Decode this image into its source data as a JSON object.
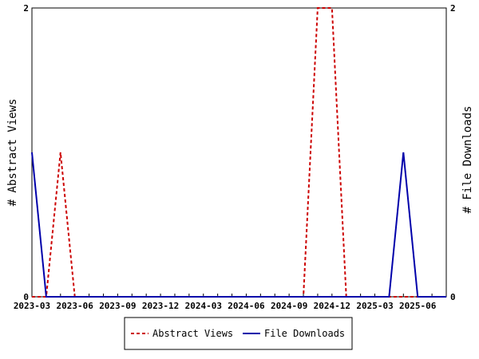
{
  "chart_data": {
    "type": "line",
    "x": [
      "2023-03",
      "2023-04",
      "2023-05",
      "2023-06",
      "2023-07",
      "2023-08",
      "2023-09",
      "2023-10",
      "2023-11",
      "2023-12",
      "2024-01",
      "2024-02",
      "2024-03",
      "2024-04",
      "2024-05",
      "2024-06",
      "2024-07",
      "2024-08",
      "2024-09",
      "2024-10",
      "2024-11",
      "2024-12",
      "2025-01",
      "2025-02",
      "2025-03",
      "2025-04",
      "2025-05",
      "2025-06",
      "2025-07",
      "2025-08"
    ],
    "x_tick_labels": [
      "2023-03",
      "2023-06",
      "2023-09",
      "2023-12",
      "2024-03",
      "2024-06",
      "2024-09",
      "2024-12",
      "2025-03",
      "2025-06"
    ],
    "series": [
      {
        "name": "Abstract Views",
        "axis": "left",
        "color": "#cc0000",
        "dash": "dashed",
        "values": [
          0,
          0,
          1,
          0,
          0,
          0,
          0,
          0,
          0,
          0,
          0,
          0,
          0,
          0,
          0,
          0,
          0,
          0,
          0,
          0,
          2,
          2,
          0,
          0,
          0,
          0,
          0,
          0,
          0,
          0
        ]
      },
      {
        "name": "File Downloads",
        "axis": "right",
        "color": "#0000aa",
        "dash": "solid",
        "values": [
          1,
          0,
          0,
          0,
          0,
          0,
          0,
          0,
          0,
          0,
          0,
          0,
          0,
          0,
          0,
          0,
          0,
          0,
          0,
          0,
          0,
          0,
          0,
          0,
          0,
          0,
          1,
          0,
          0,
          0
        ]
      }
    ],
    "ylabel_left": "# Abstract Views",
    "ylabel_right": "# File Downloads",
    "ylim_left": [
      0,
      2
    ],
    "ylim_right": [
      0,
      2
    ],
    "y_tick_labels": [
      "0",
      "2"
    ],
    "grid": false,
    "legend": "bottom-center"
  }
}
